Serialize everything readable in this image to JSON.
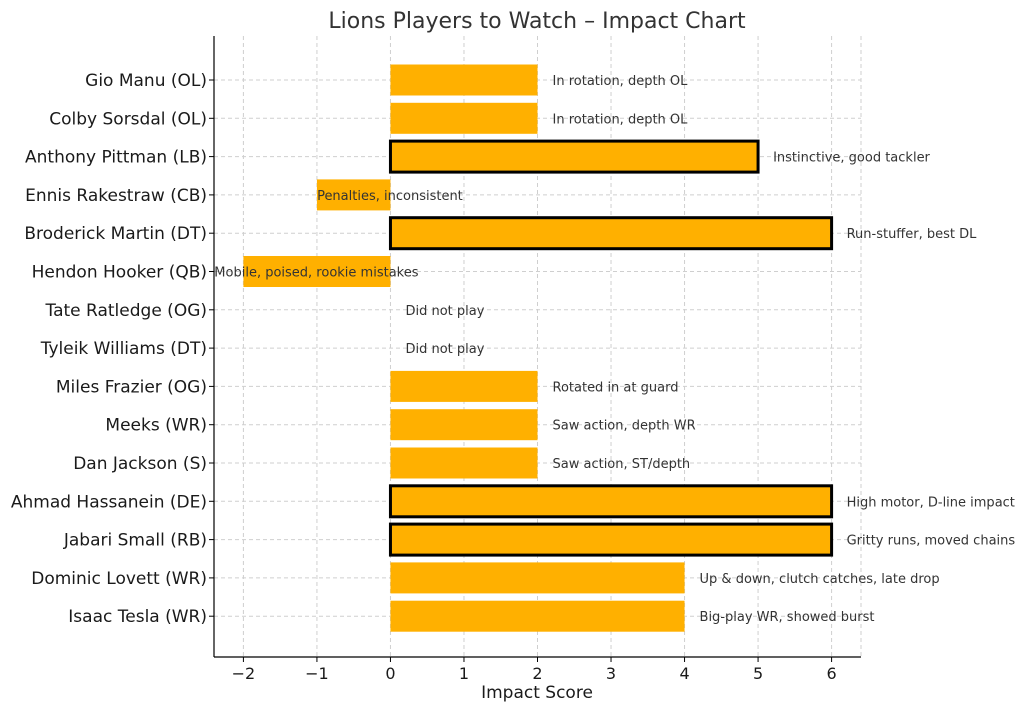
{
  "chart_data": {
    "type": "bar",
    "orientation": "horizontal",
    "title": "Lions Players to Watch – Impact Chart",
    "xlabel": "Impact Score",
    "ylabel": "",
    "xlim": [
      -2.4,
      6.4
    ],
    "xticks": [
      -2,
      -1,
      0,
      1,
      2,
      3,
      4,
      5,
      6
    ],
    "xtick_labels": [
      "−2",
      "−1",
      "0",
      "1",
      "2",
      "3",
      "4",
      "5",
      "6"
    ],
    "grid": true,
    "bar_color": "#FFB000",
    "highlight_outline_color": "#000000",
    "categories": [
      "Gio Manu (OL)",
      "Colby Sorsdal (OL)",
      "Anthony Pittman (LB)",
      "Ennis Rakestraw (CB)",
      "Broderick Martin (DT)",
      "Hendon Hooker (QB)",
      "Tate Ratledge (OG)",
      "Tyleik Williams (DT)",
      "Miles Frazier (OG)",
      "Meeks (WR)",
      "Dan Jackson (S)",
      "Ahmad Hassanein (DE)",
      "Jabari Small (RB)",
      "Dominic Lovett (WR)",
      "Isaac Tesla (WR)"
    ],
    "values": [
      2,
      2,
      5,
      -1,
      6,
      -2,
      0,
      0,
      2,
      2,
      2,
      6,
      6,
      4,
      4
    ],
    "highlighted": [
      false,
      false,
      true,
      false,
      true,
      false,
      false,
      false,
      false,
      false,
      false,
      true,
      true,
      false,
      false
    ],
    "annotations": [
      "In rotation, depth OL",
      "In rotation, depth OL",
      "Instinctive, good tackler",
      "Penalties, inconsistent",
      "Run-stuffer, best DL",
      "Mobile, poised, rookie mistakes",
      "Did not play",
      "Did not play",
      "Rotated in at guard",
      "Saw action, depth WR",
      "Saw action, ST/depth",
      "High motor, D-line impact",
      "Gritty runs, moved chains",
      "Up & down, clutch catches, late drop",
      "Big-play WR, showed burst"
    ]
  }
}
